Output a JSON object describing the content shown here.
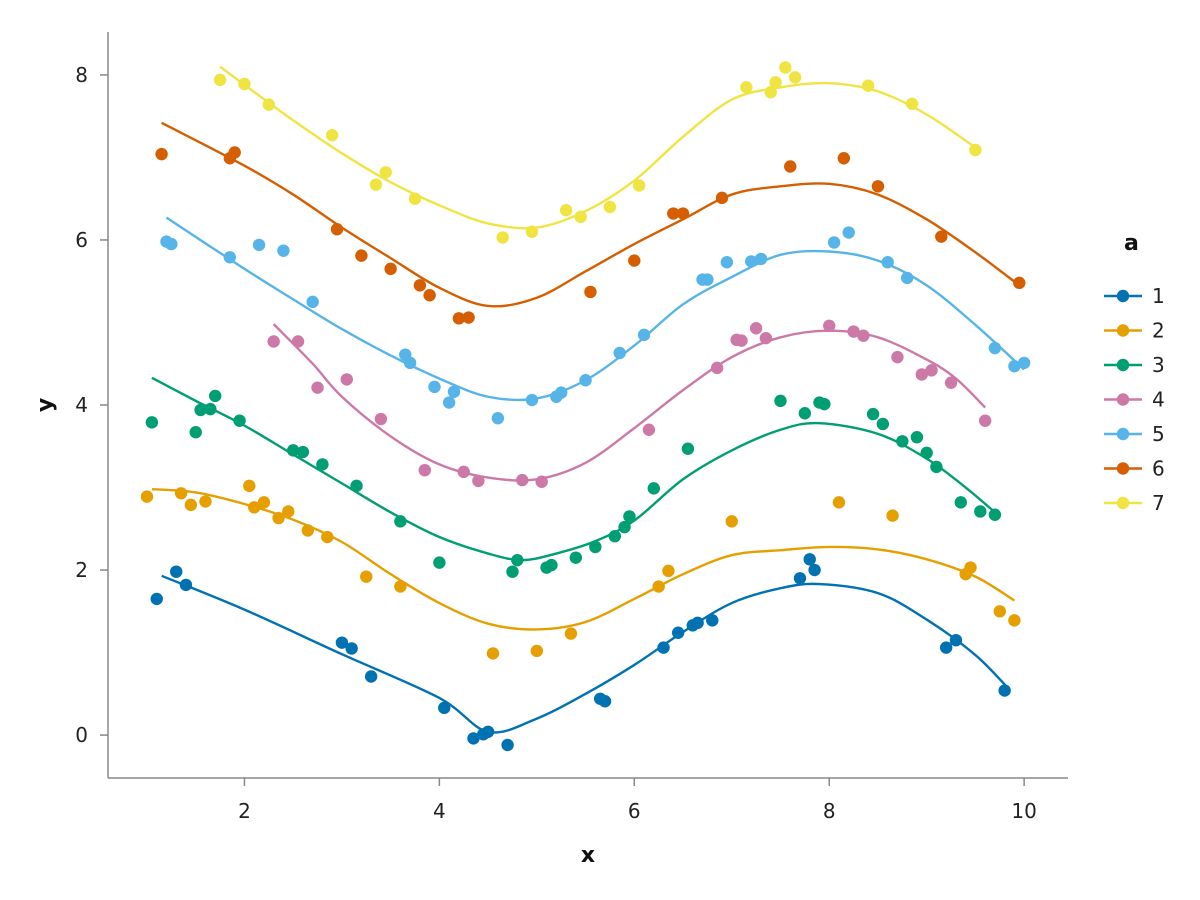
{
  "chart_data": {
    "type": "scatter",
    "title": "",
    "xlabel": "x",
    "ylabel": "y",
    "xlim": [
      0.6,
      10.45
    ],
    "ylim": [
      -0.52,
      8.52
    ],
    "xticks": [
      2,
      4,
      6,
      8,
      10
    ],
    "yticks": [
      0,
      2,
      4,
      6,
      8
    ],
    "xtick_labels": [
      "2",
      "4",
      "6",
      "8",
      "10"
    ],
    "ytick_labels": [
      "0",
      "2",
      "4",
      "6",
      "8"
    ],
    "grid": false,
    "legend": {
      "title": "a",
      "placement": "right"
    },
    "series": [
      {
        "name": "1",
        "color": "#0072B2",
        "points": [
          [
            1.1,
            1.65
          ],
          [
            1.3,
            1.98
          ],
          [
            1.4,
            1.82
          ],
          [
            3.0,
            1.12
          ],
          [
            3.1,
            1.05
          ],
          [
            3.3,
            0.71
          ],
          [
            4.05,
            0.33
          ],
          [
            4.35,
            -0.04
          ],
          [
            4.45,
            0.01
          ],
          [
            4.5,
            0.04
          ],
          [
            4.7,
            -0.12
          ],
          [
            5.65,
            0.44
          ],
          [
            5.7,
            0.41
          ],
          [
            6.3,
            1.06
          ],
          [
            6.45,
            1.24
          ],
          [
            6.6,
            1.33
          ],
          [
            6.65,
            1.36
          ],
          [
            6.8,
            1.39
          ],
          [
            7.7,
            1.9
          ],
          [
            7.8,
            2.13
          ],
          [
            7.85,
            2.0
          ],
          [
            9.2,
            1.06
          ],
          [
            9.3,
            1.15
          ],
          [
            9.8,
            0.54
          ]
        ],
        "fit": [
          [
            1.15,
            1.93
          ],
          [
            2.0,
            1.52
          ],
          [
            3.0,
            0.98
          ],
          [
            4.0,
            0.45
          ],
          [
            4.5,
            0.04
          ],
          [
            5.0,
            0.2
          ],
          [
            5.5,
            0.5
          ],
          [
            6.0,
            0.85
          ],
          [
            6.5,
            1.25
          ],
          [
            7.0,
            1.6
          ],
          [
            7.5,
            1.78
          ],
          [
            7.9,
            1.83
          ],
          [
            8.5,
            1.72
          ],
          [
            9.0,
            1.4
          ],
          [
            9.5,
            0.97
          ],
          [
            9.85,
            0.55
          ]
        ]
      },
      {
        "name": "2",
        "color": "#E69F00",
        "points": [
          [
            1.0,
            2.89
          ],
          [
            1.35,
            2.93
          ],
          [
            1.45,
            2.79
          ],
          [
            1.6,
            2.83
          ],
          [
            2.05,
            3.02
          ],
          [
            2.1,
            2.76
          ],
          [
            2.2,
            2.82
          ],
          [
            2.35,
            2.63
          ],
          [
            2.45,
            2.71
          ],
          [
            2.65,
            2.48
          ],
          [
            2.85,
            2.4
          ],
          [
            3.25,
            1.92
          ],
          [
            3.6,
            1.8
          ],
          [
            4.55,
            0.99
          ],
          [
            5.0,
            1.02
          ],
          [
            5.35,
            1.23
          ],
          [
            6.25,
            1.8
          ],
          [
            6.35,
            1.99
          ],
          [
            7.0,
            2.59
          ],
          [
            8.1,
            2.82
          ],
          [
            8.65,
            2.66
          ],
          [
            9.4,
            1.95
          ],
          [
            9.45,
            2.03
          ],
          [
            9.75,
            1.5
          ],
          [
            9.9,
            1.39
          ]
        ],
        "fit": [
          [
            1.05,
            2.98
          ],
          [
            1.5,
            2.94
          ],
          [
            2.0,
            2.8
          ],
          [
            2.5,
            2.61
          ],
          [
            3.0,
            2.34
          ],
          [
            3.5,
            1.95
          ],
          [
            4.0,
            1.6
          ],
          [
            4.5,
            1.35
          ],
          [
            5.0,
            1.28
          ],
          [
            5.5,
            1.37
          ],
          [
            6.0,
            1.65
          ],
          [
            6.5,
            1.95
          ],
          [
            7.0,
            2.18
          ],
          [
            7.5,
            2.24
          ],
          [
            8.0,
            2.28
          ],
          [
            8.5,
            2.25
          ],
          [
            9.0,
            2.13
          ],
          [
            9.5,
            1.92
          ],
          [
            9.9,
            1.63
          ]
        ]
      },
      {
        "name": "3",
        "color": "#009E73",
        "points": [
          [
            1.05,
            3.79
          ],
          [
            1.5,
            3.67
          ],
          [
            1.55,
            3.94
          ],
          [
            1.65,
            3.95
          ],
          [
            1.7,
            4.11
          ],
          [
            1.95,
            3.81
          ],
          [
            2.5,
            3.45
          ],
          [
            2.6,
            3.43
          ],
          [
            2.8,
            3.28
          ],
          [
            3.15,
            3.02
          ],
          [
            3.6,
            2.59
          ],
          [
            4.0,
            2.09
          ],
          [
            4.75,
            1.98
          ],
          [
            4.8,
            2.12
          ],
          [
            5.1,
            2.03
          ],
          [
            5.15,
            2.06
          ],
          [
            5.4,
            2.15
          ],
          [
            5.6,
            2.28
          ],
          [
            5.8,
            2.41
          ],
          [
            5.9,
            2.52
          ],
          [
            5.95,
            2.65
          ],
          [
            6.2,
            2.99
          ],
          [
            6.55,
            3.47
          ],
          [
            7.5,
            4.05
          ],
          [
            7.75,
            3.9
          ],
          [
            7.9,
            4.03
          ],
          [
            7.95,
            4.01
          ],
          [
            8.45,
            3.89
          ],
          [
            8.55,
            3.77
          ],
          [
            8.75,
            3.56
          ],
          [
            8.9,
            3.61
          ],
          [
            9.0,
            3.42
          ],
          [
            9.1,
            3.25
          ],
          [
            9.35,
            2.82
          ],
          [
            9.55,
            2.71
          ],
          [
            9.7,
            2.67
          ]
        ],
        "fit": [
          [
            1.05,
            4.33
          ],
          [
            1.5,
            4.05
          ],
          [
            2.0,
            3.75
          ],
          [
            2.5,
            3.4
          ],
          [
            3.0,
            3.05
          ],
          [
            3.5,
            2.7
          ],
          [
            4.0,
            2.4
          ],
          [
            4.5,
            2.2
          ],
          [
            4.85,
            2.12
          ],
          [
            5.2,
            2.2
          ],
          [
            5.6,
            2.35
          ],
          [
            6.0,
            2.6
          ],
          [
            6.5,
            3.1
          ],
          [
            7.0,
            3.45
          ],
          [
            7.5,
            3.7
          ],
          [
            7.9,
            3.78
          ],
          [
            8.5,
            3.65
          ],
          [
            9.0,
            3.35
          ],
          [
            9.4,
            3.0
          ],
          [
            9.7,
            2.7
          ]
        ]
      },
      {
        "name": "4",
        "color": "#CC79A7",
        "points": [
          [
            2.3,
            4.77
          ],
          [
            2.55,
            4.77
          ],
          [
            2.75,
            4.21
          ],
          [
            3.05,
            4.31
          ],
          [
            3.4,
            3.83
          ],
          [
            3.85,
            3.21
          ],
          [
            4.25,
            3.19
          ],
          [
            4.4,
            3.08
          ],
          [
            4.85,
            3.09
          ],
          [
            5.05,
            3.07
          ],
          [
            6.15,
            3.7
          ],
          [
            6.85,
            4.45
          ],
          [
            7.05,
            4.79
          ],
          [
            7.1,
            4.78
          ],
          [
            7.25,
            4.93
          ],
          [
            7.35,
            4.81
          ],
          [
            8.0,
            4.96
          ],
          [
            8.25,
            4.89
          ],
          [
            8.35,
            4.84
          ],
          [
            8.7,
            4.58
          ],
          [
            8.95,
            4.37
          ],
          [
            9.05,
            4.42
          ],
          [
            9.25,
            4.27
          ],
          [
            9.6,
            3.81
          ]
        ],
        "fit": [
          [
            2.3,
            4.98
          ],
          [
            2.7,
            4.5
          ],
          [
            3.0,
            4.1
          ],
          [
            3.5,
            3.62
          ],
          [
            4.0,
            3.28
          ],
          [
            4.5,
            3.12
          ],
          [
            5.0,
            3.1
          ],
          [
            5.5,
            3.3
          ],
          [
            6.0,
            3.72
          ],
          [
            6.5,
            4.18
          ],
          [
            7.0,
            4.58
          ],
          [
            7.5,
            4.82
          ],
          [
            8.0,
            4.9
          ],
          [
            8.5,
            4.82
          ],
          [
            9.0,
            4.55
          ],
          [
            9.3,
            4.32
          ],
          [
            9.6,
            3.97
          ]
        ]
      },
      {
        "name": "5",
        "color": "#56B4E9",
        "points": [
          [
            1.2,
            5.98
          ],
          [
            1.25,
            5.95
          ],
          [
            1.85,
            5.79
          ],
          [
            2.15,
            5.94
          ],
          [
            2.4,
            5.87
          ],
          [
            2.7,
            5.25
          ],
          [
            3.65,
            4.61
          ],
          [
            3.7,
            4.51
          ],
          [
            3.95,
            4.22
          ],
          [
            4.1,
            4.03
          ],
          [
            4.15,
            4.16
          ],
          [
            4.6,
            3.84
          ],
          [
            4.95,
            4.06
          ],
          [
            5.2,
            4.1
          ],
          [
            5.25,
            4.15
          ],
          [
            5.5,
            4.3
          ],
          [
            5.85,
            4.63
          ],
          [
            6.1,
            4.85
          ],
          [
            6.7,
            5.52
          ],
          [
            6.75,
            5.52
          ],
          [
            6.95,
            5.73
          ],
          [
            7.2,
            5.74
          ],
          [
            7.3,
            5.77
          ],
          [
            8.05,
            5.97
          ],
          [
            8.2,
            6.09
          ],
          [
            8.6,
            5.73
          ],
          [
            8.8,
            5.54
          ],
          [
            9.7,
            4.69
          ],
          [
            9.9,
            4.47
          ],
          [
            10.0,
            4.51
          ]
        ],
        "fit": [
          [
            1.2,
            6.27
          ],
          [
            2.0,
            5.65
          ],
          [
            2.5,
            5.28
          ],
          [
            3.0,
            4.92
          ],
          [
            3.5,
            4.6
          ],
          [
            4.0,
            4.32
          ],
          [
            4.5,
            4.1
          ],
          [
            5.0,
            4.08
          ],
          [
            5.5,
            4.3
          ],
          [
            6.0,
            4.72
          ],
          [
            6.5,
            5.22
          ],
          [
            7.0,
            5.55
          ],
          [
            7.5,
            5.82
          ],
          [
            8.0,
            5.86
          ],
          [
            8.5,
            5.75
          ],
          [
            9.0,
            5.45
          ],
          [
            9.5,
            4.97
          ],
          [
            10.0,
            4.43
          ]
        ]
      },
      {
        "name": "6",
        "color": "#D55E00",
        "points": [
          [
            1.15,
            7.04
          ],
          [
            1.85,
            6.99
          ],
          [
            1.9,
            7.06
          ],
          [
            2.95,
            6.13
          ],
          [
            3.2,
            5.81
          ],
          [
            3.5,
            5.65
          ],
          [
            3.8,
            5.45
          ],
          [
            3.9,
            5.33
          ],
          [
            4.2,
            5.05
          ],
          [
            4.3,
            5.06
          ],
          [
            5.55,
            5.37
          ],
          [
            6.0,
            5.75
          ],
          [
            6.4,
            6.32
          ],
          [
            6.5,
            6.32
          ],
          [
            6.9,
            6.51
          ],
          [
            7.6,
            6.89
          ],
          [
            8.15,
            6.99
          ],
          [
            8.5,
            6.65
          ],
          [
            9.15,
            6.04
          ],
          [
            9.95,
            5.48
          ]
        ],
        "fit": [
          [
            1.15,
            7.42
          ],
          [
            2.0,
            6.9
          ],
          [
            2.5,
            6.55
          ],
          [
            3.0,
            6.15
          ],
          [
            3.5,
            5.78
          ],
          [
            4.0,
            5.42
          ],
          [
            4.5,
            5.2
          ],
          [
            5.0,
            5.3
          ],
          [
            5.5,
            5.62
          ],
          [
            6.0,
            5.95
          ],
          [
            6.5,
            6.25
          ],
          [
            7.0,
            6.55
          ],
          [
            7.5,
            6.65
          ],
          [
            8.0,
            6.68
          ],
          [
            8.5,
            6.55
          ],
          [
            9.0,
            6.25
          ],
          [
            9.5,
            5.85
          ],
          [
            9.95,
            5.45
          ]
        ]
      },
      {
        "name": "7",
        "color": "#F0E442",
        "points": [
          [
            1.75,
            7.94
          ],
          [
            2.0,
            7.89
          ],
          [
            2.25,
            7.64
          ],
          [
            2.9,
            7.27
          ],
          [
            3.35,
            6.67
          ],
          [
            3.45,
            6.82
          ],
          [
            3.75,
            6.5
          ],
          [
            4.65,
            6.03
          ],
          [
            4.95,
            6.1
          ],
          [
            5.3,
            6.36
          ],
          [
            5.45,
            6.28
          ],
          [
            5.75,
            6.4
          ],
          [
            6.05,
            6.66
          ],
          [
            7.15,
            7.85
          ],
          [
            7.4,
            7.79
          ],
          [
            7.45,
            7.91
          ],
          [
            7.55,
            8.09
          ],
          [
            7.65,
            7.97
          ],
          [
            8.4,
            7.87
          ],
          [
            8.85,
            7.65
          ],
          [
            9.5,
            7.09
          ]
        ],
        "fit": [
          [
            1.75,
            8.1
          ],
          [
            2.0,
            7.88
          ],
          [
            2.5,
            7.45
          ],
          [
            3.0,
            7.05
          ],
          [
            3.5,
            6.7
          ],
          [
            4.0,
            6.42
          ],
          [
            4.5,
            6.2
          ],
          [
            5.0,
            6.15
          ],
          [
            5.5,
            6.35
          ],
          [
            6.0,
            6.72
          ],
          [
            6.5,
            7.25
          ],
          [
            7.0,
            7.7
          ],
          [
            7.5,
            7.85
          ],
          [
            8.0,
            7.9
          ],
          [
            8.5,
            7.8
          ],
          [
            9.0,
            7.52
          ],
          [
            9.5,
            7.12
          ]
        ]
      }
    ]
  }
}
